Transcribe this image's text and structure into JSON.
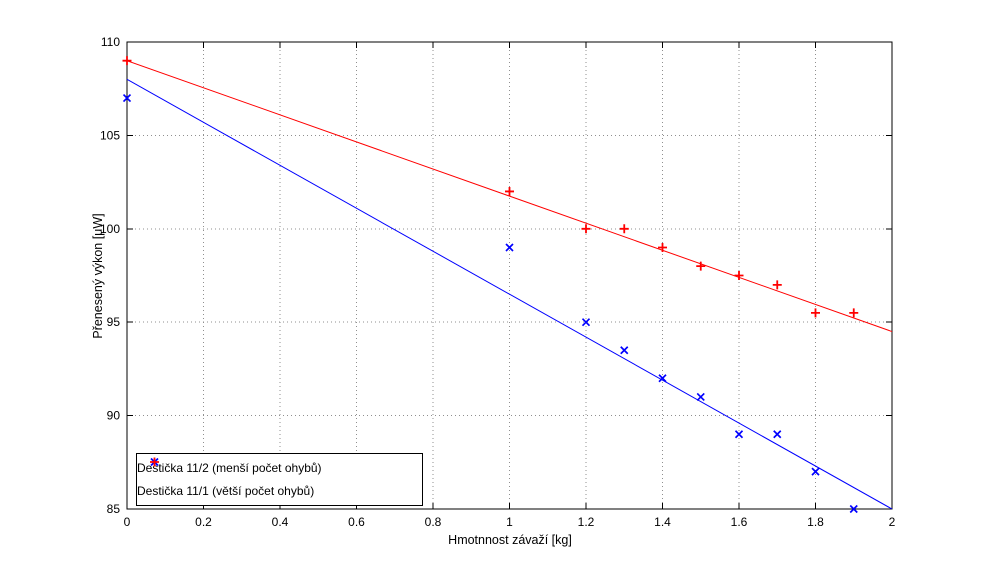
{
  "figure": {
    "background": "#ffffff",
    "axis_color": "#000000",
    "grid_color": "#8f8f8f"
  },
  "chart_data": {
    "type": "scatter",
    "title": "",
    "xlabel": "Hmotnnost závaží [kg]",
    "ylabel": "Přenesený výkon [μW]",
    "xlim": [
      0,
      2
    ],
    "ylim": [
      85,
      110
    ],
    "xticks": [
      0,
      0.2,
      0.4,
      0.6,
      0.8,
      1,
      1.2,
      1.4,
      1.6,
      1.8,
      2
    ],
    "yticks": [
      85,
      90,
      95,
      100,
      105,
      110
    ],
    "grid": true,
    "legend_position": "bottom-left",
    "series": [
      {
        "name": "Destička 11/2 (menší počet ohybů)",
        "marker": "x",
        "color": "#0000ff",
        "points": [
          [
            0,
            107
          ],
          [
            1,
            99
          ],
          [
            1.2,
            95
          ],
          [
            1.3,
            93.5
          ],
          [
            1.4,
            92
          ],
          [
            1.5,
            91
          ],
          [
            1.6,
            89
          ],
          [
            1.7,
            89
          ],
          [
            1.8,
            87
          ],
          [
            1.9,
            85
          ]
        ],
        "fit_line": {
          "x": [
            0,
            2
          ],
          "y": [
            108,
            85
          ]
        }
      },
      {
        "name": "Destička 11/1 (větší počet ohybů)",
        "marker": "+",
        "color": "#ff0000",
        "points": [
          [
            0,
            109
          ],
          [
            1,
            102
          ],
          [
            1.2,
            100
          ],
          [
            1.3,
            100
          ],
          [
            1.4,
            99
          ],
          [
            1.5,
            98
          ],
          [
            1.6,
            97.5
          ],
          [
            1.7,
            97
          ],
          [
            1.8,
            95.5
          ],
          [
            1.9,
            95.5
          ]
        ],
        "fit_line": {
          "x": [
            0,
            2
          ],
          "y": [
            109,
            94.5
          ]
        }
      }
    ]
  }
}
